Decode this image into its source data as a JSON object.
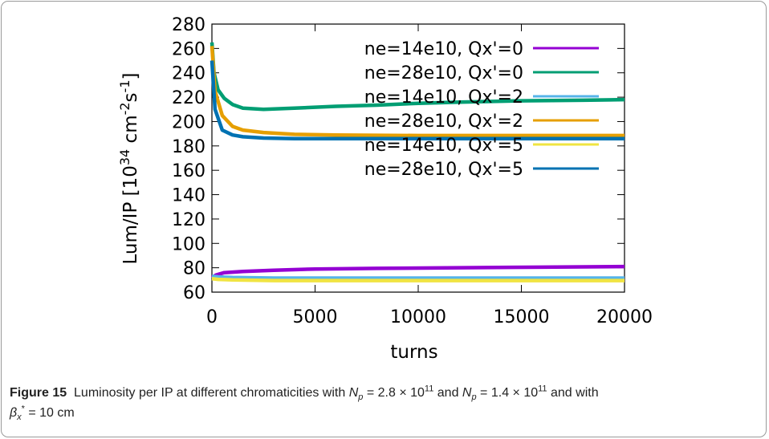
{
  "chart_data": {
    "type": "line",
    "ylabel": "Lum/IP [10^34 cm^-2 s^-1]",
    "xlabel": "turns",
    "xlim": [
      0,
      20000
    ],
    "ylim": [
      60,
      280
    ],
    "x_ticks": [
      0,
      5000,
      10000,
      15000,
      20000
    ],
    "y_ticks": [
      60,
      80,
      100,
      120,
      140,
      160,
      180,
      200,
      220,
      240,
      260,
      280
    ],
    "grid": false,
    "legend_position": "top-right",
    "series": [
      {
        "name": "ne=14e10, Qx'=0",
        "color": "#9400d3",
        "x": [
          0,
          200,
          600,
          1500,
          3000,
          5000,
          8000,
          12000,
          16000,
          20000
        ],
        "y": [
          72,
          74,
          76,
          77,
          78,
          79,
          79.5,
          80,
          80.5,
          81
        ]
      },
      {
        "name": "ne=28e10, Qx'=0",
        "color": "#009e73",
        "x": [
          0,
          100,
          300,
          600,
          1000,
          1500,
          2500,
          4000,
          6000,
          8000,
          10000,
          12000,
          15000,
          18000,
          20000
        ],
        "y": [
          265,
          240,
          226,
          219,
          214,
          211,
          210,
          211,
          212.5,
          213.5,
          215,
          216,
          217,
          217.5,
          218
        ]
      },
      {
        "name": "ne=14e10, Qx'=2",
        "color": "#56b4e9",
        "x": [
          0,
          300,
          1000,
          3000,
          6000,
          10000,
          15000,
          20000
        ],
        "y": [
          73,
          72.5,
          72,
          71.5,
          71.5,
          71.5,
          71.5,
          71.5
        ]
      },
      {
        "name": "ne=28e10, Qx'=2",
        "color": "#e69f00",
        "x": [
          0,
          150,
          500,
          1000,
          1500,
          2500,
          4000,
          6000,
          10000,
          15000,
          20000
        ],
        "y": [
          262,
          225,
          205,
          196,
          193,
          191,
          189.5,
          189,
          188.5,
          188.5,
          188.5
        ]
      },
      {
        "name": "ne=14e10, Qx'=5",
        "color": "#f0e442",
        "x": [
          0,
          300,
          1000,
          3000,
          6000,
          10000,
          15000,
          20000
        ],
        "y": [
          71,
          70.5,
          70,
          69.5,
          69.5,
          69.5,
          69.5,
          69.5
        ]
      },
      {
        "name": "ne=28e10, Qx'=5",
        "color": "#0072b2",
        "x": [
          0,
          150,
          500,
          1000,
          1500,
          2500,
          4000,
          6000,
          10000,
          15000,
          20000
        ],
        "y": [
          250,
          210,
          193,
          189,
          187.5,
          186.5,
          186,
          186,
          186,
          186,
          186
        ]
      }
    ]
  },
  "caption": {
    "label": "Figure 15",
    "text_1": "Luminosity per IP at different chromaticities with ",
    "var_np": "N",
    "sub_p": "p",
    "eq_1": " = 2.8 × 10",
    "exp_1": "11",
    "and": " and ",
    "eq_2": " = 1.4 × 10",
    "exp_2": "11",
    "text_2": " and with",
    "beta": "β",
    "beta_sub": "x",
    "beta_sup": "*",
    "beta_val": " = 10 cm"
  }
}
